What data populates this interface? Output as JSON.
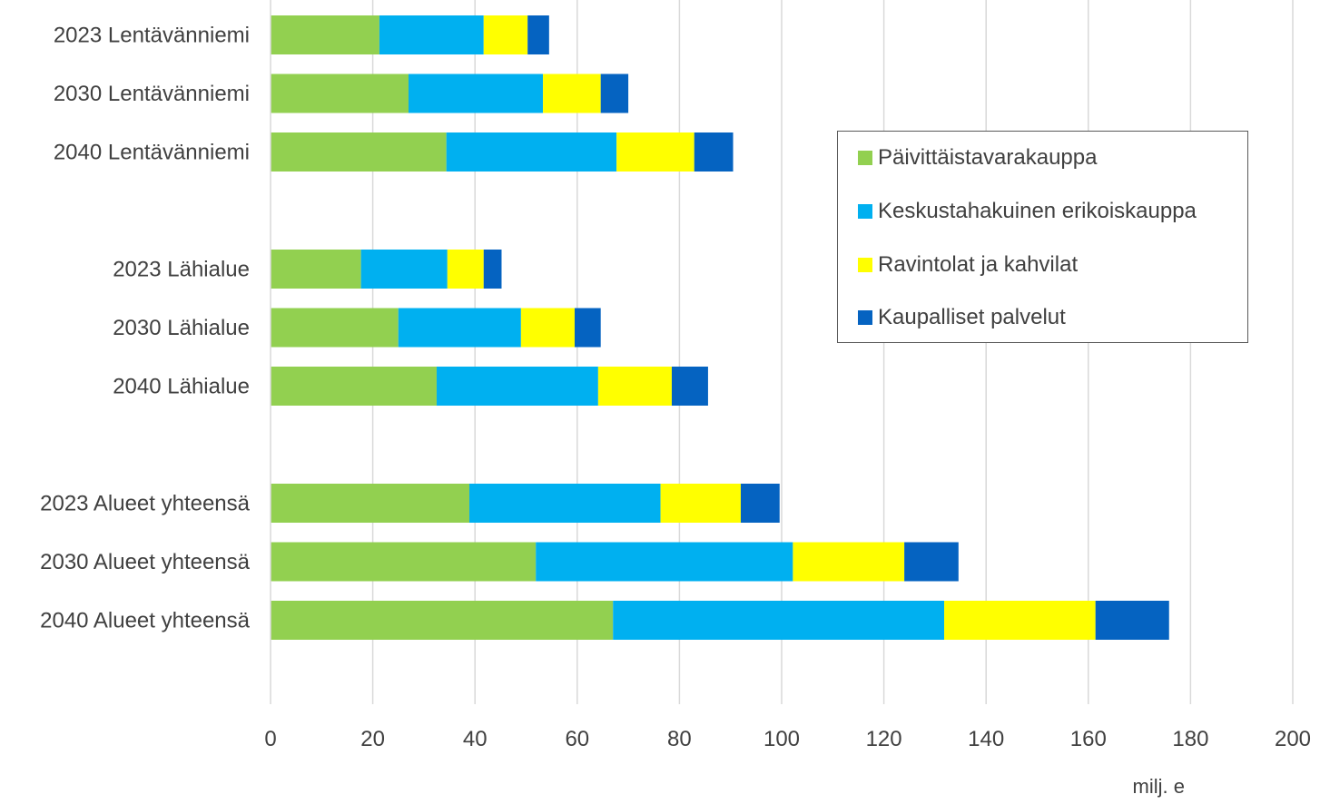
{
  "chart_data": {
    "type": "bar",
    "orientation": "horizontal",
    "stacked": true,
    "categories": [
      "2023 Lentävänniemi",
      "2030 Lentävänniemi",
      "2040 Lentävänniemi",
      "",
      "2023 Lähialue",
      "2030 Lähialue",
      "2040 Lähialue",
      "",
      "2023 Alueet yhteensä",
      "2030 Alueet yhteensä",
      "2040 Alueet yhteensä"
    ],
    "series": [
      {
        "name": "Päivittäistavarakauppa",
        "color": "#92d050",
        "values": [
          21.3,
          27.0,
          34.4,
          null,
          17.7,
          25.0,
          32.5,
          null,
          38.9,
          51.9,
          67.0
        ]
      },
      {
        "name": "Keskustahakuinen erikoiskauppa",
        "color": "#00b0f0",
        "values": [
          20.4,
          26.3,
          33.3,
          null,
          16.9,
          24.0,
          31.6,
          null,
          37.4,
          50.3,
          64.8
        ]
      },
      {
        "name": "Ravintolat ja kahvilat",
        "color": "#ffff00",
        "values": [
          8.6,
          11.3,
          15.2,
          null,
          7.1,
          10.5,
          14.4,
          null,
          15.7,
          21.8,
          29.6
        ]
      },
      {
        "name": "Kaupalliset palvelut",
        "color": "#0563c1",
        "values": [
          4.2,
          5.4,
          7.6,
          null,
          3.5,
          5.1,
          7.1,
          null,
          7.6,
          10.6,
          14.4
        ]
      }
    ],
    "xlim": [
      0,
      200
    ],
    "xticks": [
      "0",
      "20",
      "40",
      "60",
      "80",
      "100",
      "120",
      "140",
      "160",
      "180",
      "200"
    ],
    "xlabel": "milj. e",
    "ylabel": "",
    "title": "",
    "grid": "vertical",
    "legend_position": "right"
  }
}
